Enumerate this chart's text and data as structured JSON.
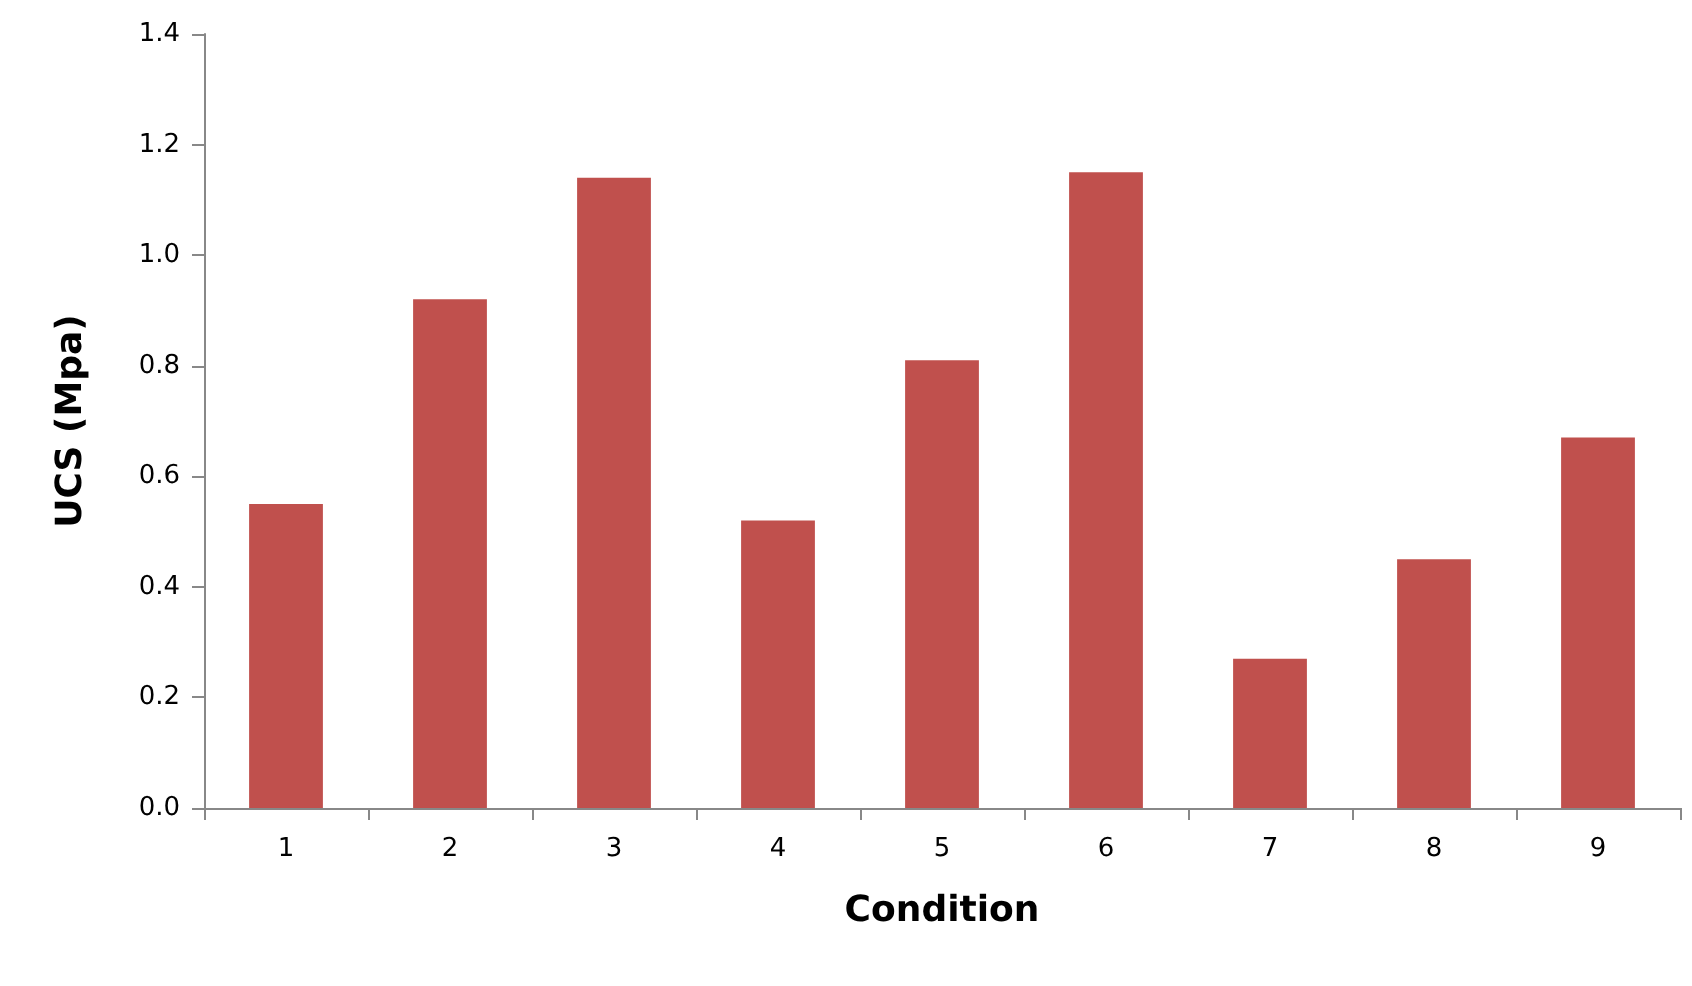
{
  "chart_data": {
    "type": "bar",
    "xlabel": "Condition",
    "ylabel": "UCS (Mpa)",
    "categories": [
      "1",
      "2",
      "3",
      "4",
      "5",
      "6",
      "7",
      "8",
      "9"
    ],
    "values": [
      0.55,
      0.92,
      1.14,
      0.52,
      0.81,
      1.15,
      0.27,
      0.45,
      0.67
    ],
    "color": "#c0504d",
    "ylim": [
      0,
      1.4
    ],
    "yticks": [
      {
        "value": 0,
        "label": "0.0"
      },
      {
        "value": 0.2,
        "label": "0.2"
      },
      {
        "value": 0.4,
        "label": "0.4"
      },
      {
        "value": 0.6,
        "label": "0.6"
      },
      {
        "value": 0.8,
        "label": "0.8"
      },
      {
        "value": 1.0,
        "label": "1.0"
      },
      {
        "value": 1.2,
        "label": "1.2"
      },
      {
        "value": 1.4,
        "label": "1.4"
      }
    ],
    "grid": false
  }
}
